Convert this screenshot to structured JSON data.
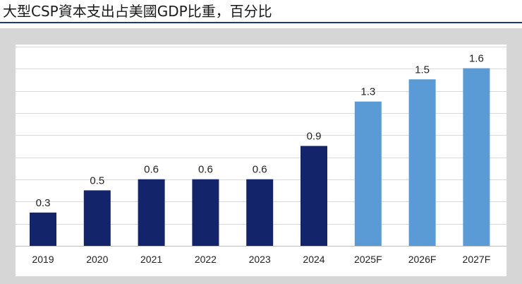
{
  "chart_data": {
    "type": "bar",
    "title": "大型CSP資本支出占美國GDP比重，百分比",
    "categories": [
      "2019",
      "2020",
      "2021",
      "2022",
      "2023",
      "2024",
      "2025F",
      "2026F",
      "2027F"
    ],
    "values": [
      0.3,
      0.5,
      0.6,
      0.6,
      0.6,
      0.9,
      1.3,
      1.5,
      1.6
    ],
    "value_labels": [
      "0.3",
      "0.5",
      "0.6",
      "0.6",
      "0.6",
      "0.9",
      "1.3",
      "1.5",
      "1.6"
    ],
    "forecast": [
      false,
      false,
      false,
      false,
      false,
      false,
      true,
      true,
      true
    ],
    "ylim": [
      0,
      1.82
    ],
    "grid": true,
    "xlabel": "",
    "ylabel": "",
    "colors": {
      "actual": "#13246b",
      "forecast": "#5b9bd5",
      "grid": "#d9d9d9",
      "title_rule": "#1f3b73"
    }
  }
}
